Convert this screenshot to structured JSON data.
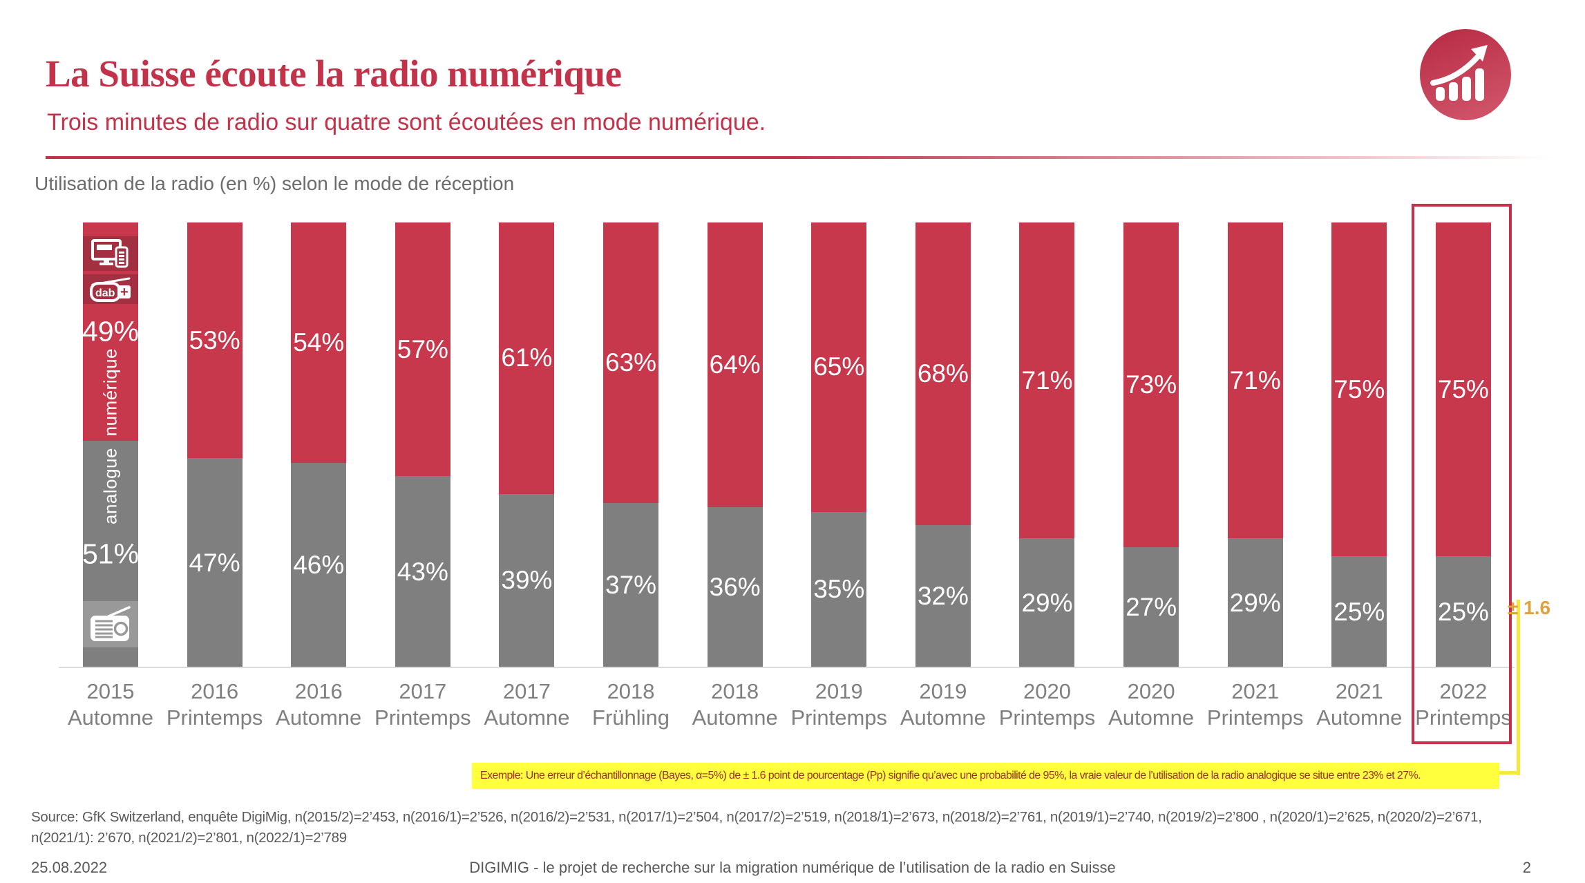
{
  "header": {
    "title": "La Suisse écoute la radio numérique",
    "subtitle": "Trois minutes de radio sur quatre sont écoutées en mode numérique.",
    "logo_icon": "rising-bar-chart-icon"
  },
  "chart": {
    "heading": "Utilisation de la radio (en %) selon le mode de réception"
  },
  "chart_data": {
    "type": "bar",
    "stacked": true,
    "title": "Utilisation de la radio (en %) selon le mode de réception",
    "categories": [
      "2015 Automne",
      "2016 Printemps",
      "2016 Automne",
      "2017 Printemps",
      "2017 Automne",
      "2018 Frühling",
      "2018 Automne",
      "2019 Printemps",
      "2019 Automne",
      "2020 Printemps",
      "2020 Automne",
      "2021 Printemps",
      "2021 Automne",
      "2022 Printemps"
    ],
    "series": [
      {
        "name": "numérique",
        "color": "#C7384D",
        "values": [
          49,
          53,
          54,
          57,
          61,
          63,
          64,
          65,
          68,
          71,
          73,
          71,
          75,
          75
        ]
      },
      {
        "name": "analogue",
        "color": "#7F7F7F",
        "values": [
          51,
          47,
          46,
          43,
          39,
          37,
          36,
          35,
          32,
          29,
          27,
          29,
          25,
          25
        ]
      }
    ],
    "value_suffix": "%",
    "ylim": [
      0,
      100
    ],
    "grid": false,
    "legend_position": "inside-first-bar",
    "first_bar_icons": [
      "devices-icon",
      "dabplus-icon",
      "radio-icon"
    ],
    "highlight": {
      "category": "2022 Printemps",
      "error_margin": "± 1.6"
    }
  },
  "annotation": {
    "error_label": "± 1.6",
    "example_text": "Exemple: Une erreur d’échantillonnage (Bayes, α=5%) de ± 1.6 point de pourcentage (Pp) signifie qu’avec une probabilité de 95%, la vraie valeur de l’utilisation de la radio analogique se situe entre 23% et  27%."
  },
  "source": {
    "line1": "Source: GfK Switzerland, enquête DigiMig, n(2015/2)=2’453, n(2016/1)=2’526, n(2016/2)=2’531, n(2017/1)=2’504, n(2017/2)=2’519, n(2018/1)=2’673, n(2018/2)=2’761, n(2019/1)=2’740, n(2019/2)=2’800 , n(2020/1)=2’625, n(2020/2)=2’671,",
    "line2": "n(2021/1): 2’670, n(2021/2)=2’801, n(2022/1)=2’789"
  },
  "footer": {
    "date": "25.08.2022",
    "project": "DIGIMIG - le projet de recherche sur la migration numérique de l’utilisation de la radio en Suisse",
    "page": "2"
  },
  "colors": {
    "brand_red": "#C23249",
    "bar_red": "#C7384D",
    "bar_dark_red": "#A23040",
    "bar_gray": "#7F7F7F",
    "radio_box_gray": "#999999",
    "highlight_yellow": "#FFFF3D",
    "error_orange": "#E1A23B"
  }
}
